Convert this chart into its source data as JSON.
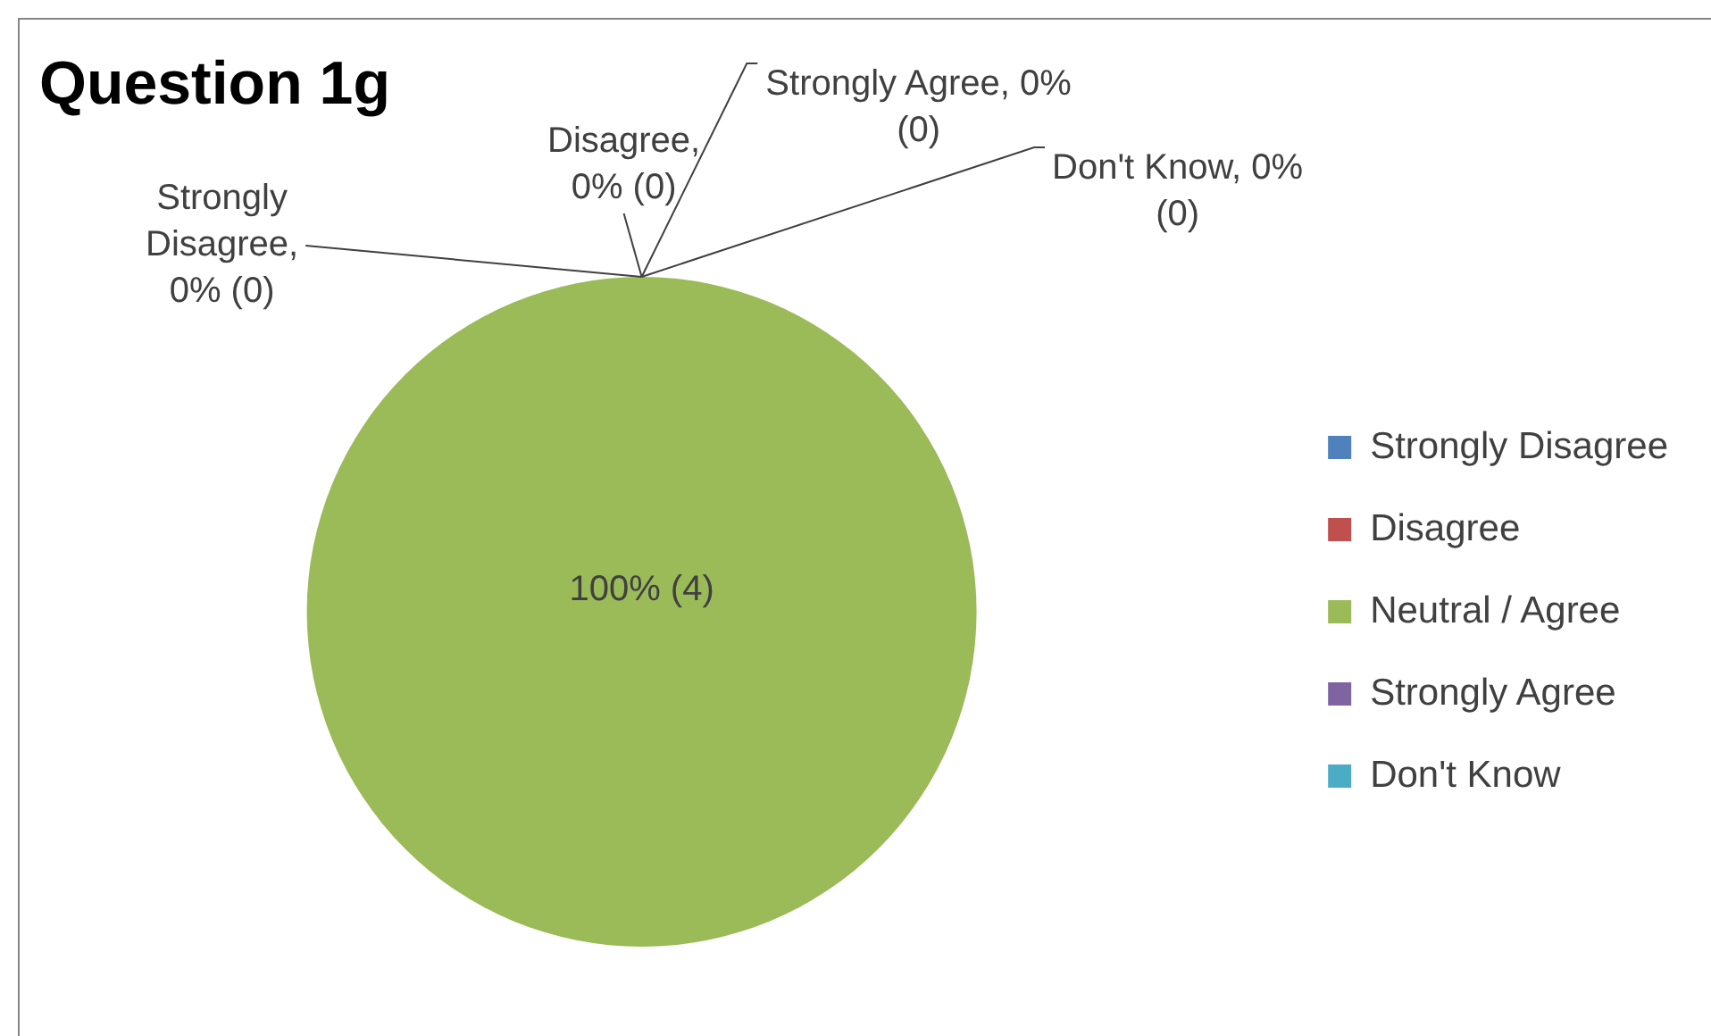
{
  "chart_data": {
    "type": "pie",
    "title": "Question 1g",
    "categories": [
      "Strongly Disagree",
      "Disagree",
      "Neutral / Agree",
      "Strongly Agree",
      "Don't Know"
    ],
    "values": [
      0,
      0,
      4,
      0,
      0
    ],
    "colors": [
      "#4f81bd",
      "#c0504d",
      "#9bbb59",
      "#8064a2",
      "#4bacc6"
    ],
    "value_labels": [
      "Strongly Disagree, 0% (0)",
      "Disagree, 0% (0)",
      "100% (4)",
      "Strongly Agree, 0% (0)",
      "Don't Know, 0% (0)"
    ],
    "legend": "right"
  }
}
